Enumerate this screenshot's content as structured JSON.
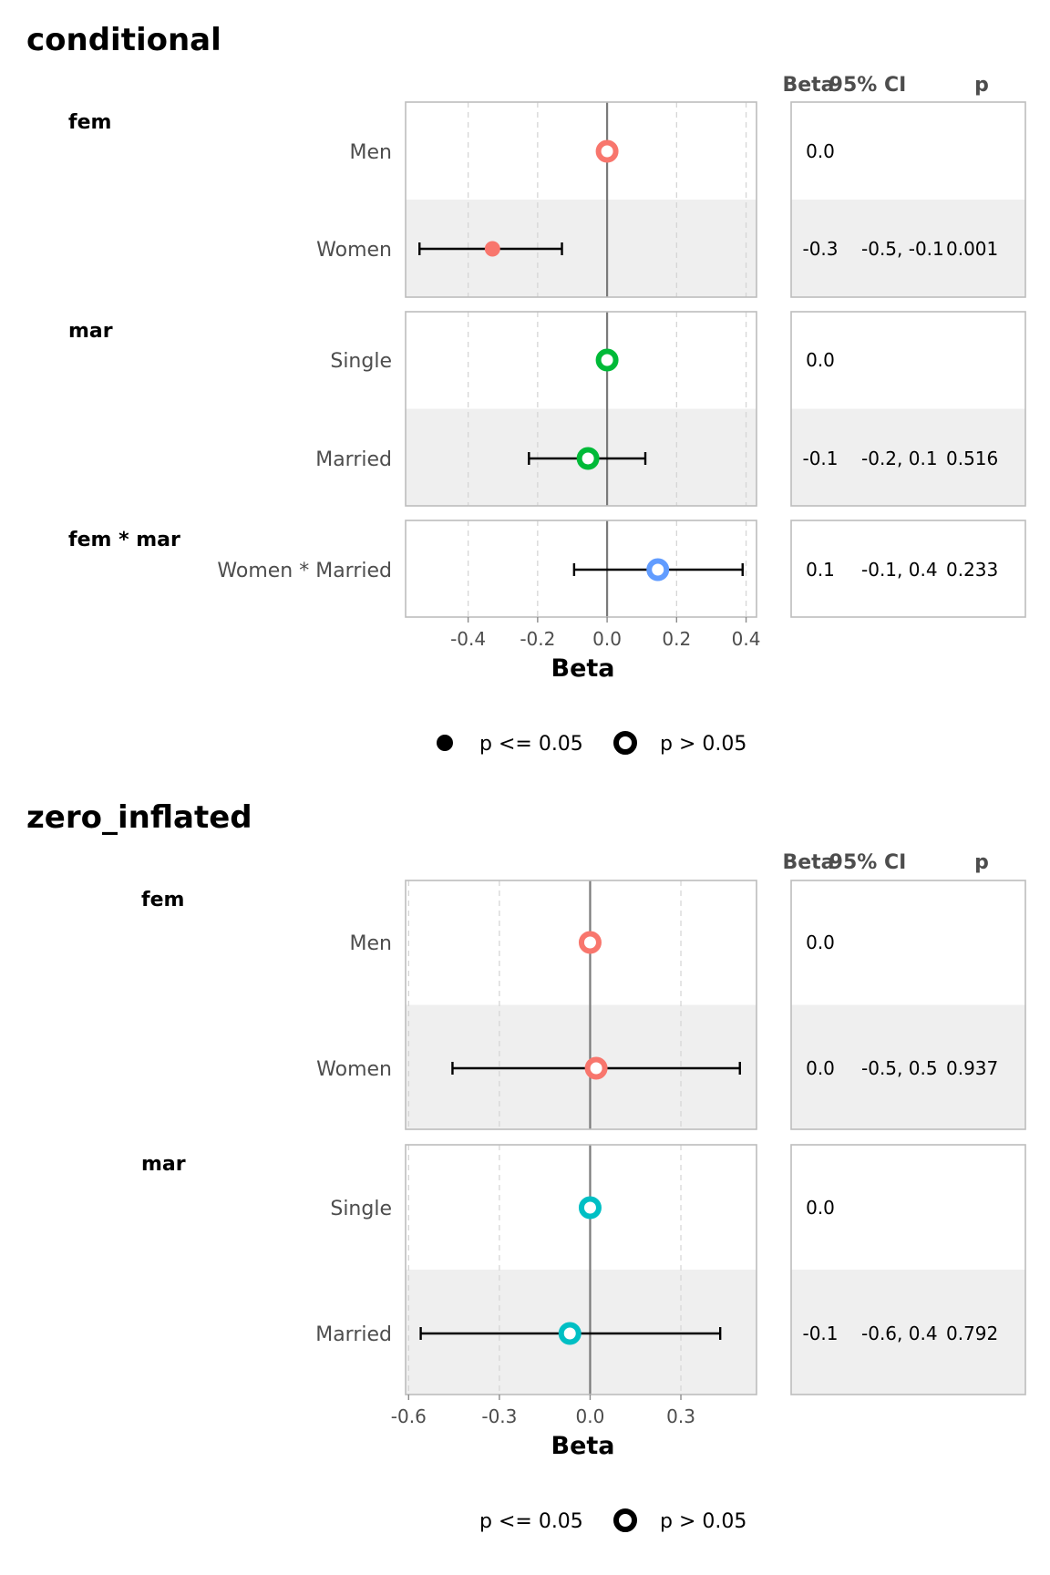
{
  "chart_data": [
    {
      "type": "forest",
      "title": "conditional",
      "xlabel": "Beta",
      "xlim": [
        -0.58,
        0.43
      ],
      "xticks": [
        -0.4,
        -0.2,
        0.0,
        0.2,
        0.4
      ],
      "xtick_labels": [
        "-0.4",
        "-0.2",
        "0.0",
        "0.2",
        "0.4"
      ],
      "reference_line": 0,
      "table_headers": [
        "Beta",
        "95% CI",
        "p"
      ],
      "groups": [
        {
          "label": "fem",
          "rows": [
            {
              "label": "Men",
              "beta": 0.0,
              "ci_low": null,
              "ci_high": null,
              "significant": false,
              "color": "#f8766d",
              "beta_text": "0.0",
              "ci_text": "",
              "p_text": "",
              "shaded": false
            },
            {
              "label": "Women",
              "beta": -0.33,
              "ci_low": -0.54,
              "ci_high": -0.13,
              "significant": true,
              "color": "#f8766d",
              "beta_text": "-0.3",
              "ci_text": "-0.5, -0.1",
              "p_text": "0.001",
              "shaded": true
            }
          ]
        },
        {
          "label": "mar",
          "rows": [
            {
              "label": "Single",
              "beta": 0.0,
              "ci_low": null,
              "ci_high": null,
              "significant": false,
              "color": "#00ba38",
              "beta_text": "0.0",
              "ci_text": "",
              "p_text": "",
              "shaded": false
            },
            {
              "label": "Married",
              "beta": -0.055,
              "ci_low": -0.225,
              "ci_high": 0.11,
              "significant": false,
              "color": "#00ba38",
              "beta_text": "-0.1",
              "ci_text": "-0.2, 0.1",
              "p_text": "0.516",
              "shaded": true
            }
          ]
        },
        {
          "label": "fem * mar",
          "rows": [
            {
              "label": "Women * Married",
              "beta": 0.146,
              "ci_low": -0.095,
              "ci_high": 0.39,
              "significant": false,
              "color": "#619cff",
              "beta_text": "0.1",
              "ci_text": "-0.1, 0.4",
              "p_text": "0.233",
              "shaded": false
            }
          ]
        }
      ],
      "legend": {
        "position": "bottom",
        "items": [
          "p <= 0.05",
          "p > 0.05"
        ]
      }
    },
    {
      "type": "forest",
      "title": "zero_inflated",
      "xlabel": "Beta",
      "xlim": [
        -0.61,
        0.55
      ],
      "xticks": [
        -0.6,
        -0.3,
        0.0,
        0.3
      ],
      "xtick_labels": [
        "-0.6",
        "-0.3",
        "0.0",
        "0.3"
      ],
      "reference_line": 0,
      "table_headers": [
        "Beta",
        "95% CI",
        "p"
      ],
      "groups": [
        {
          "label": "fem",
          "rows": [
            {
              "label": "Men",
              "beta": 0.0,
              "ci_low": null,
              "ci_high": null,
              "significant": false,
              "color": "#f8766d",
              "beta_text": "0.0",
              "ci_text": "",
              "p_text": "",
              "shaded": false
            },
            {
              "label": "Women",
              "beta": 0.02,
              "ci_low": -0.455,
              "ci_high": 0.495,
              "significant": false,
              "color": "#f8766d",
              "beta_text": "0.0",
              "ci_text": "-0.5, 0.5",
              "p_text": "0.937",
              "shaded": true
            }
          ]
        },
        {
          "label": "mar",
          "rows": [
            {
              "label": "Single",
              "beta": 0.0,
              "ci_low": null,
              "ci_high": null,
              "significant": false,
              "color": "#00bfc4",
              "beta_text": "0.0",
              "ci_text": "",
              "p_text": "",
              "shaded": false
            },
            {
              "label": "Married",
              "beta": -0.067,
              "ci_low": -0.56,
              "ci_high": 0.43,
              "significant": false,
              "color": "#00bfc4",
              "beta_text": "-0.1",
              "ci_text": "-0.6, 0.4",
              "p_text": "0.792",
              "shaded": true
            }
          ]
        }
      ],
      "legend": {
        "position": "bottom",
        "items": [
          "p <= 0.05",
          "p > 0.05"
        ]
      }
    }
  ]
}
